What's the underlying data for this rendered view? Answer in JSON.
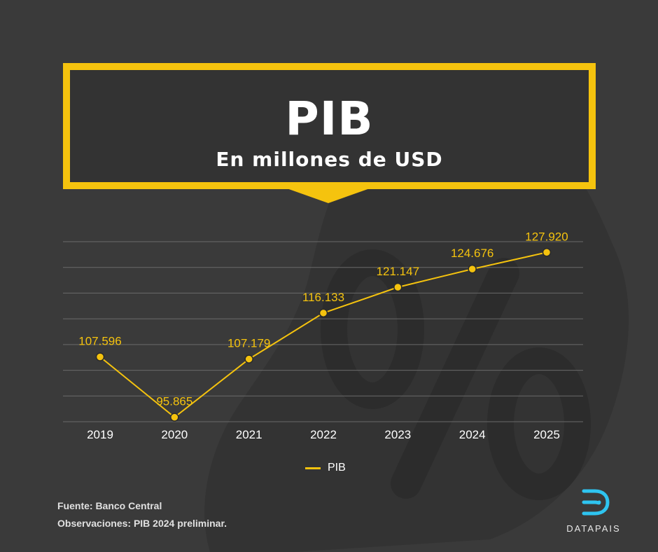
{
  "header": {
    "title": "PIB",
    "subtitle": "En millones de USD"
  },
  "colors": {
    "background": "#3a3a3a",
    "accent": "#f5c30e",
    "grid": "#6a6a6a",
    "text": "#ffffff"
  },
  "chart_data": {
    "type": "line",
    "x": [
      "2019",
      "2020",
      "2021",
      "2022",
      "2023",
      "2024",
      "2025"
    ],
    "series": [
      {
        "name": "PIB",
        "values": [
          107596,
          95865,
          107179,
          116133,
          121147,
          124676,
          127920
        ],
        "labels": [
          "107.596",
          "95.865",
          "107.179",
          "116.133",
          "121.147",
          "124.676",
          "127.920"
        ]
      }
    ],
    "ylim": [
      95000,
      130000
    ],
    "grid": true,
    "legend": "bottom-center"
  },
  "legend": {
    "label": "PIB"
  },
  "footer": {
    "source": "Fuente: Banco Central",
    "notes": "Observaciones: PIB 2024 preliminar."
  },
  "logo": {
    "text": "DATAPAIS",
    "icon": "datapais-logo-icon"
  }
}
